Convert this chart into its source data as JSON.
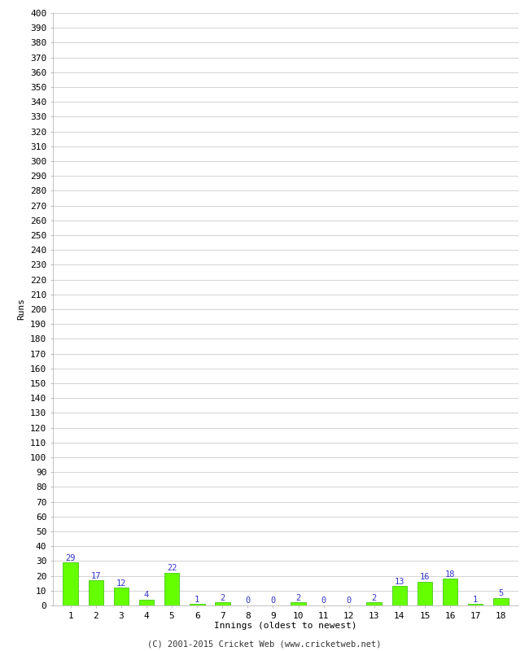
{
  "innings": [
    1,
    2,
    3,
    4,
    5,
    6,
    7,
    8,
    9,
    10,
    11,
    12,
    13,
    14,
    15,
    16,
    17,
    18
  ],
  "runs": [
    29,
    17,
    12,
    4,
    22,
    1,
    2,
    0,
    0,
    2,
    0,
    0,
    2,
    13,
    16,
    18,
    1,
    5
  ],
  "bar_color": "#66ff00",
  "bar_edge_color": "#33bb00",
  "label_color": "#3333cc",
  "ylabel": "Runs",
  "xlabel": "Innings (oldest to newest)",
  "footer": "(C) 2001-2015 Cricket Web (www.cricketweb.net)",
  "ytick_step": 10,
  "ymax": 400,
  "background_color": "#ffffff",
  "grid_color": "#cccccc",
  "label_fontsize": 7.5,
  "axis_tick_fontsize": 8,
  "axis_label_fontsize": 8,
  "footer_fontsize": 7.5,
  "fig_width": 6.5,
  "fig_height": 8.0,
  "dpi": 100
}
